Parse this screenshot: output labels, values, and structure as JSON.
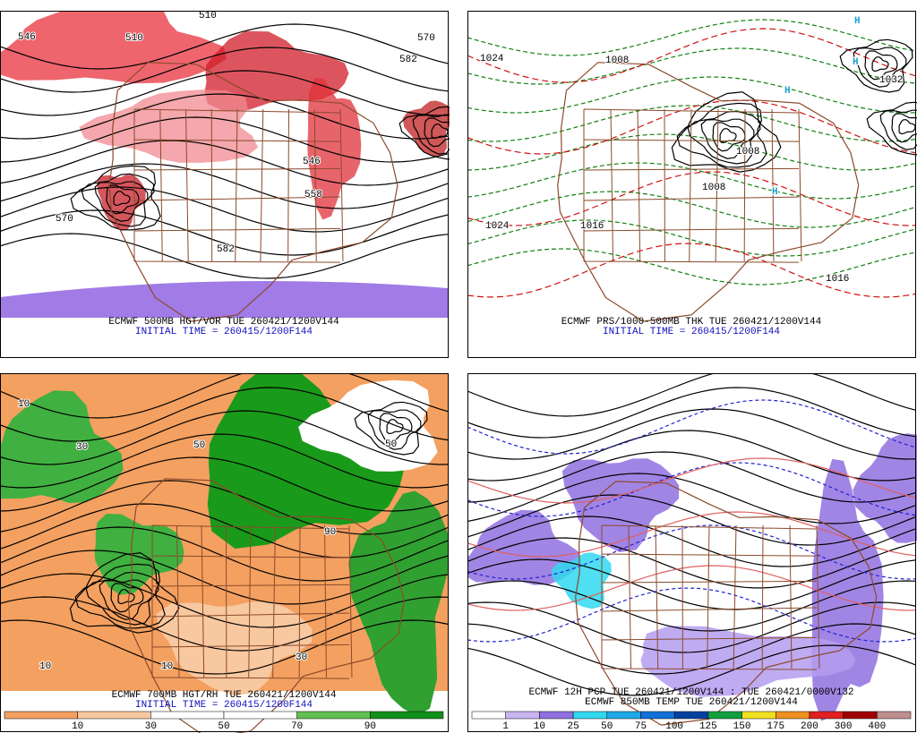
{
  "panels": [
    {
      "captions": [
        "ECMWF 500MB HGT/VOR TUE 260421/1200V144",
        "INITIAL TIME = 260415/1200F144"
      ],
      "labels": [
        "546",
        "510",
        "570",
        "582",
        "546",
        "558",
        "570",
        "582",
        "510"
      ]
    },
    {
      "captions": [
        "ECMWF PRS/1000-500MB THK TUE 260421/1200V144",
        "INITIAL TIME = 260415/1200F144"
      ],
      "labels": [
        "1024",
        "1008",
        "1016",
        "1032",
        "1024",
        "1008",
        "1016",
        "1008",
        "H",
        "H",
        "H",
        "H"
      ]
    },
    {
      "captions": [
        "ECMWF 700MB HGT/RH TUE 260421/1200V144",
        "INITIAL TIME = 260415/1200F144"
      ],
      "labels": [
        "10",
        "30",
        "50",
        "90",
        "10",
        "50",
        "10",
        "30"
      ],
      "colorbar": {
        "labels": [
          "10",
          "30",
          "50",
          "70",
          "90"
        ],
        "colors": [
          "#f4a060",
          "#f8c8a0",
          "#ffffff",
          "#ffffff",
          "#60c050",
          "#10901a"
        ]
      }
    },
    {
      "captions": [
        "ECMWF 12H PCP TUE 260421/1200V144 : TUE 260421/0000V132",
        "ECMWF 850MB TEMP TUE 260421/1200V144"
      ],
      "labels": [],
      "colorbar": {
        "labels": [
          "1",
          "10",
          "25",
          "50",
          "75",
          "100",
          "125",
          "150",
          "175",
          "200",
          "300",
          "400"
        ],
        "colors": [
          "#ffffff",
          "#c8b4f0",
          "#9070e0",
          "#30d8f0",
          "#20a8e8",
          "#1070d8",
          "#0040a0",
          "#10a040",
          "#f0e020",
          "#f09020",
          "#e02020",
          "#a00000",
          "#c09090"
        ]
      }
    }
  ]
}
